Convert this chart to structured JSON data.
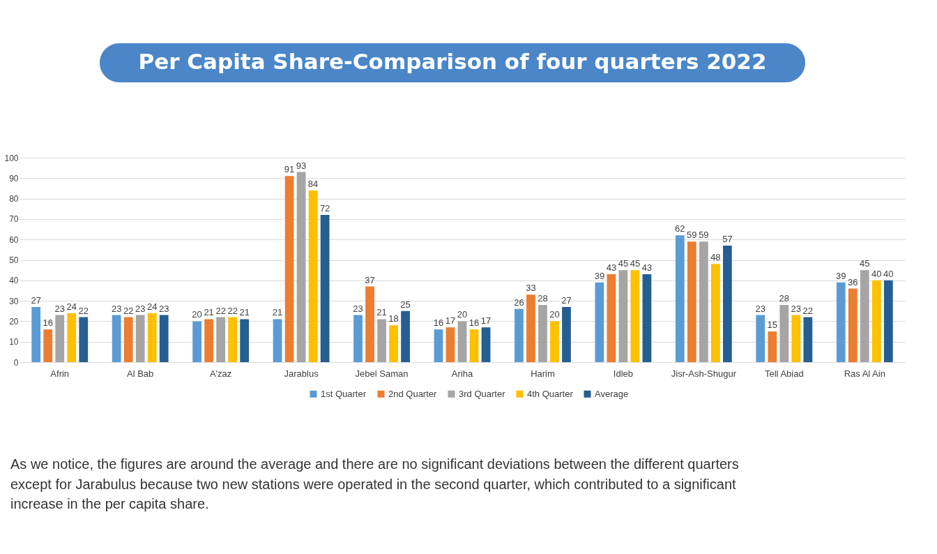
{
  "chart_data": {
    "type": "bar",
    "title": "Per Capita Share-Comparison of four quarters 2022",
    "categories": [
      "Afrin",
      "Al Bab",
      "A'zaz",
      "Jarablus",
      "Jebel Saman",
      "Ariha",
      "Harim",
      "Idleb",
      "Jisr-Ash-Shugur",
      "Tell Abiad",
      "Ras Al Ain"
    ],
    "series": [
      {
        "name": "1st Quarter",
        "color": "#5b9bd5",
        "values": [
          27,
          23,
          20,
          21,
          23,
          16,
          26,
          39,
          62,
          23,
          39
        ]
      },
      {
        "name": "2nd Quarter",
        "color": "#ed7d31",
        "values": [
          16,
          22,
          21,
          91,
          37,
          17,
          33,
          43,
          59,
          15,
          36
        ]
      },
      {
        "name": "3rd Quarter",
        "color": "#a5a5a5",
        "values": [
          23,
          23,
          22,
          93,
          21,
          20,
          28,
          45,
          59,
          28,
          45
        ]
      },
      {
        "name": "4th Quarter",
        "color": "#ffc000",
        "values": [
          24,
          24,
          22,
          84,
          18,
          16,
          20,
          45,
          48,
          23,
          40
        ]
      },
      {
        "name": "Average",
        "color": "#255e91",
        "values": [
          22,
          23,
          21,
          72,
          25,
          17,
          27,
          43,
          57,
          22,
          40
        ]
      }
    ],
    "ylim": [
      0,
      100
    ],
    "yticks": [
      0,
      10,
      20,
      30,
      40,
      50,
      60,
      70,
      80,
      90,
      100
    ],
    "grid": "y",
    "legend": "bottom",
    "data_labels": true,
    "annotations": [
      "As we notice, the figures are around the average and there are no significant deviations between the different quarters except for Jarabulus because two new stations were operated in the second quarter, which contributed to a significant increase in the per capita share."
    ]
  }
}
